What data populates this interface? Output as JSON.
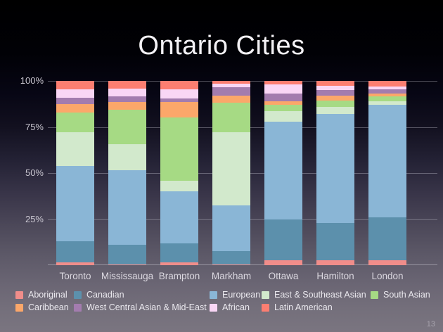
{
  "title": "Ontario Cities",
  "page_number": "13",
  "chart_data": {
    "type": "bar",
    "subtype": "stacked-percentage",
    "title": "Ontario Cities",
    "unit": "percent",
    "ylim": [
      0,
      100
    ],
    "grid": true,
    "legend_position": "bottom",
    "ytick_labels": [
      "100%",
      "75%",
      "50%",
      "25%"
    ],
    "categories": [
      "Toronto",
      "Mississauga",
      "Brampton",
      "Markham",
      "Ottawa",
      "Hamilton",
      "London"
    ],
    "stack_order": "bottom-to-top",
    "series": [
      {
        "name": "Aboriginal",
        "color": "#f08d8a",
        "values": [
          1.5,
          0.5,
          1.5,
          0.5,
          2.5,
          2.5,
          2.5
        ]
      },
      {
        "name": "Canadian",
        "color": "#5c90ac",
        "values": [
          11.5,
          10.5,
          10.5,
          7,
          22.5,
          20.5,
          23.5
        ]
      },
      {
        "name": "European",
        "color": "#8ab6d6",
        "values": [
          41,
          40.5,
          28,
          25,
          53,
          59,
          61
        ]
      },
      {
        "name": "East & Southeast Asian",
        "color": "#d2e9cc",
        "values": [
          18,
          14,
          6,
          39.5,
          5.5,
          4,
          2
        ]
      },
      {
        "name": "South Asian",
        "color": "#a6da84",
        "values": [
          11,
          19,
          34,
          16,
          3.5,
          3.5,
          2.5
        ]
      },
      {
        "name": "Caribbean",
        "color": "#fba76a",
        "values": [
          4.5,
          4,
          8.5,
          4,
          2,
          2.5,
          1.5
        ]
      },
      {
        "name": "West Central Asian & Mid-East",
        "color": "#a37cae",
        "values": [
          3.5,
          3,
          2,
          4.5,
          4,
          3,
          2.5
        ]
      },
      {
        "name": "African",
        "color": "#f9d6f5",
        "values": [
          4.5,
          4.5,
          5,
          2,
          5,
          2.5,
          1.5
        ]
      },
      {
        "name": "Latin American",
        "color": "#fc7e71",
        "values": [
          4.5,
          4,
          4.5,
          1.5,
          2,
          2.5,
          3
        ]
      }
    ],
    "legend_order": [
      "Aboriginal",
      "Canadian",
      "European",
      "East & Southeast Asian",
      "South Asian",
      "Caribbean",
      "West Central Asian & Mid-East",
      "African",
      "Latin American"
    ]
  }
}
